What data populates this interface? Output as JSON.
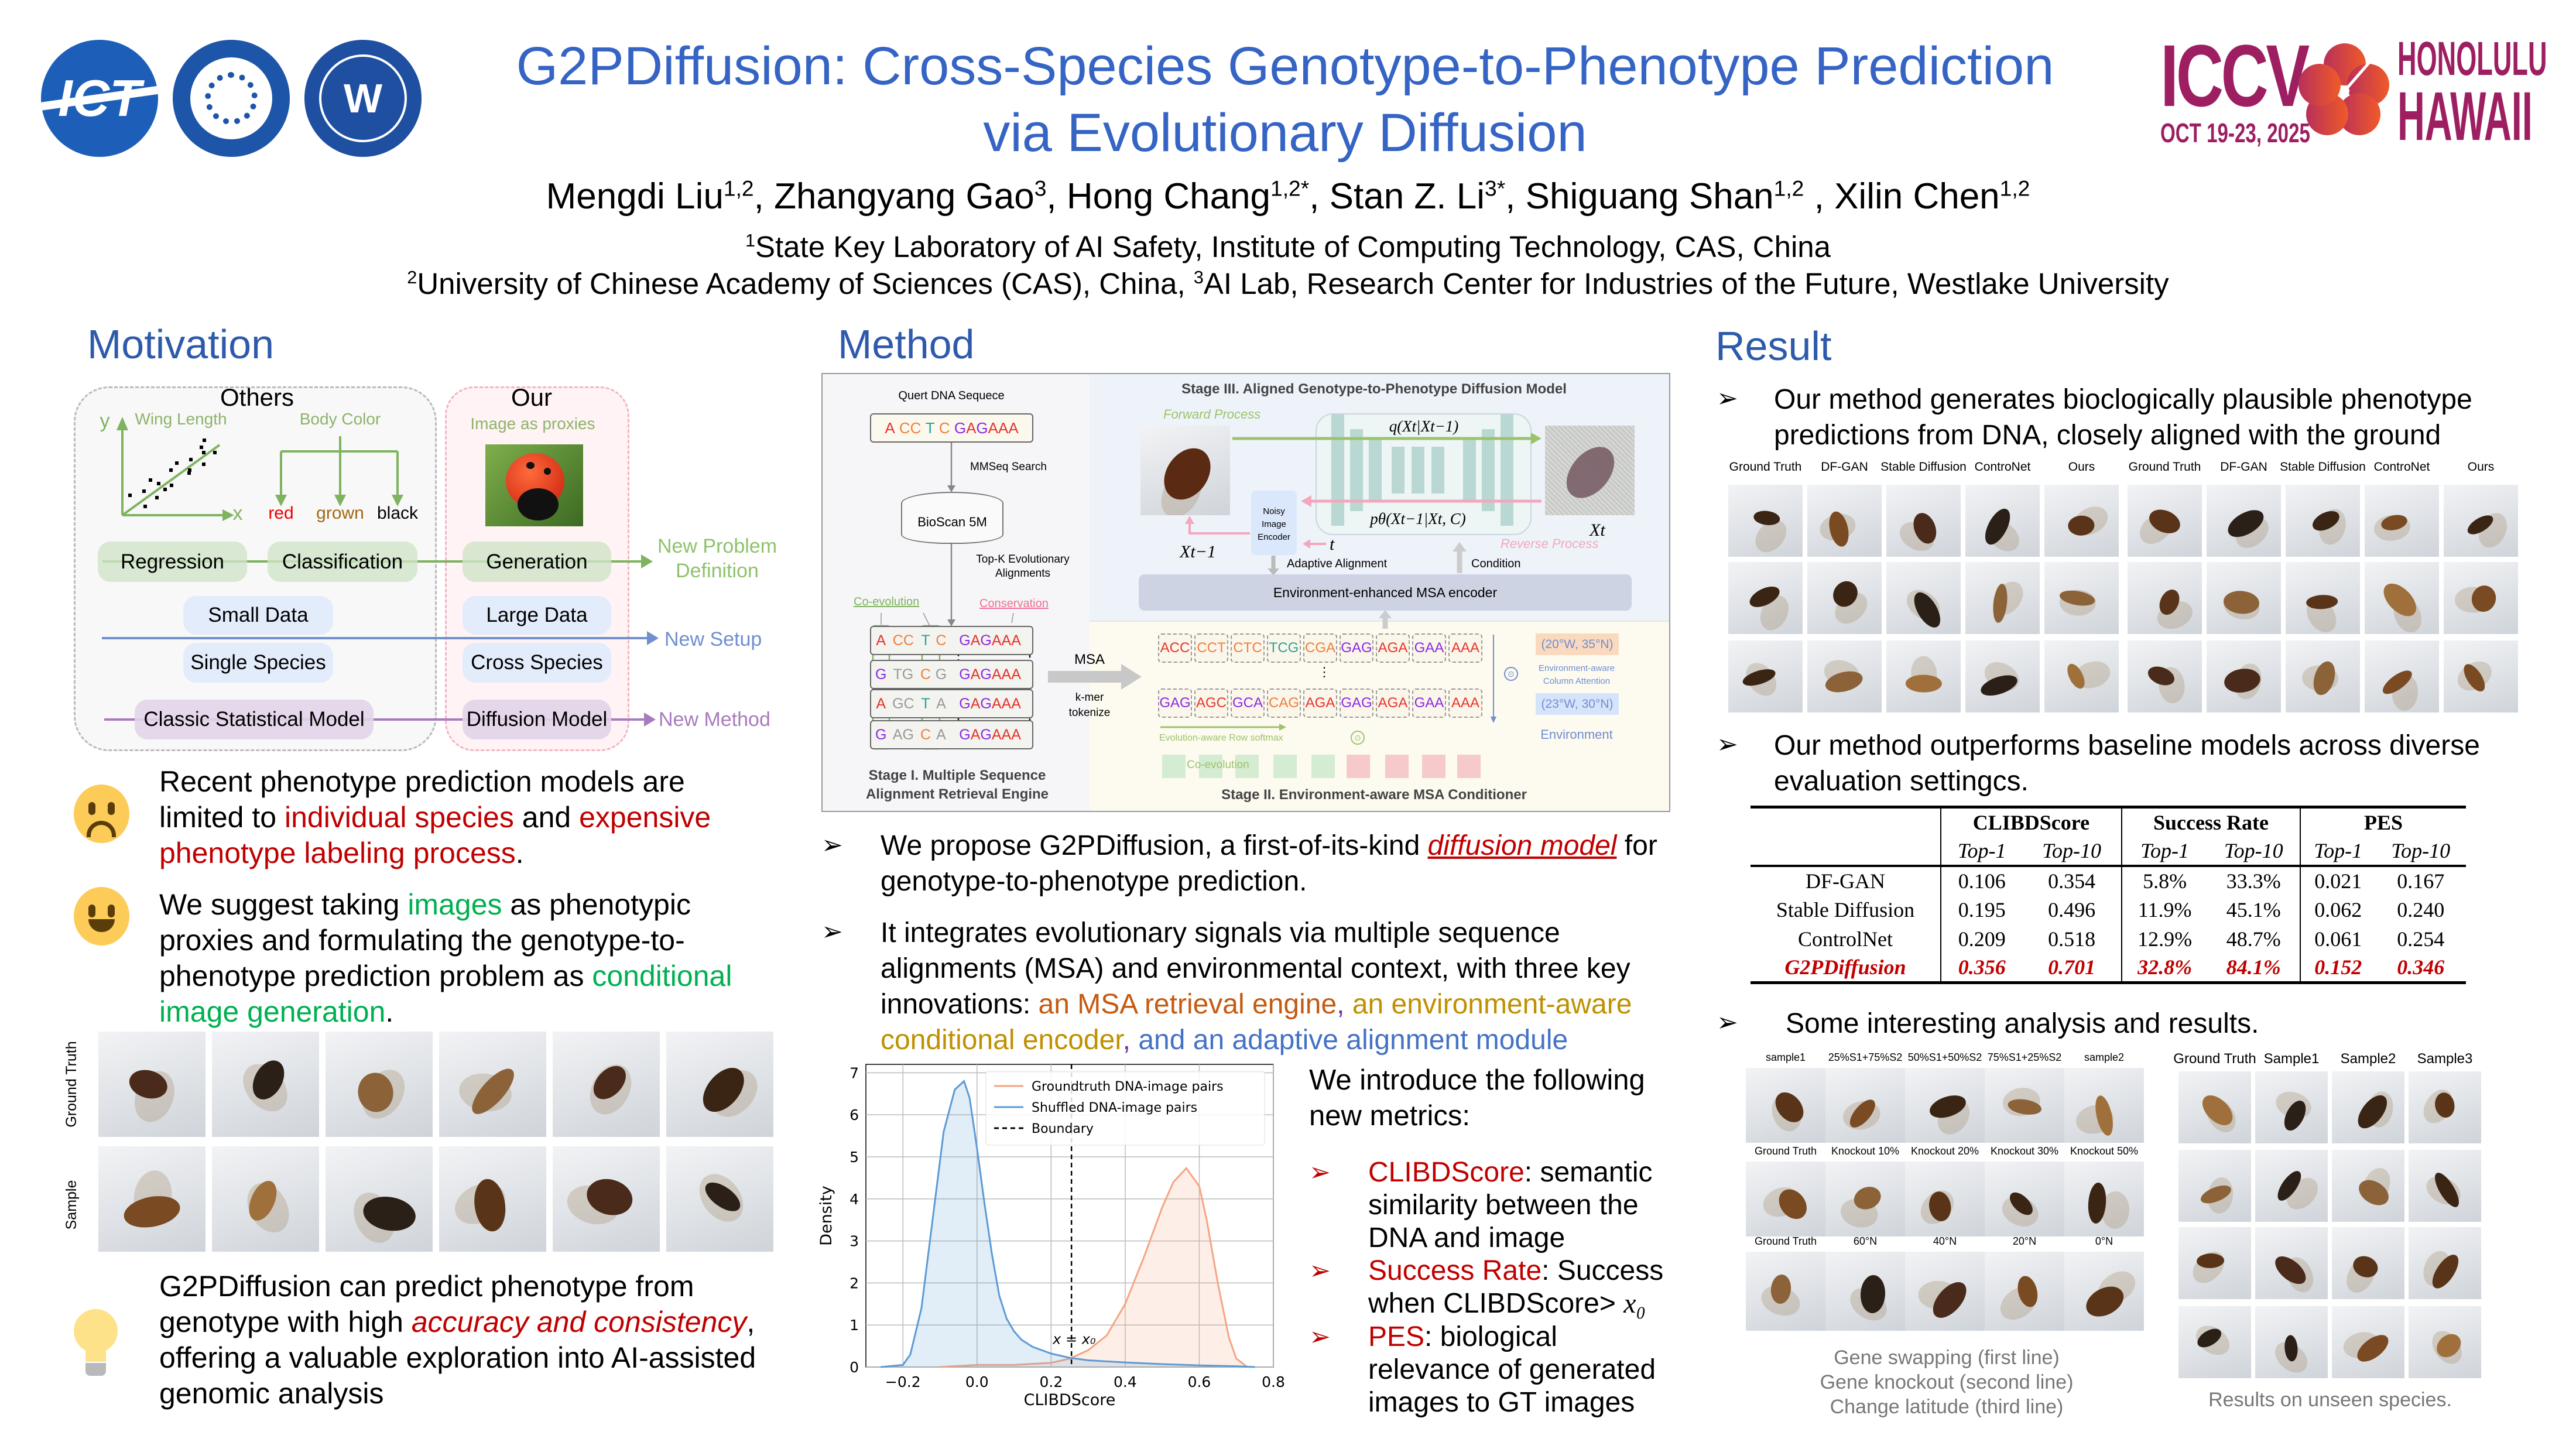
{
  "header": {
    "title_line1": "G2PDiffusion: Cross-Species Genotype-to-Phenotype Prediction",
    "title_line2": "via Evolutionary Diffusion",
    "authors": [
      {
        "name": "Mengdi Liu",
        "sup": "1,2",
        "sep": ", "
      },
      {
        "name": "Zhangyang Gao",
        "sup": "3",
        "sep": ", "
      },
      {
        "name": "Hong Chang",
        "sup": "1,2*",
        "sep": ", "
      },
      {
        "name": "Stan Z. Li",
        "sup": "3*",
        "sep": ", "
      },
      {
        "name": "Shiguang Shan",
        "sup": "1,2",
        "sep": " , "
      },
      {
        "name": "Xilin Chen",
        "sup": "1,2",
        "sep": ""
      }
    ],
    "affiliation1": {
      "sup": "1",
      "text": "State Key Laboratory of AI Safety, Institute of Computing Technology, CAS, China"
    },
    "affiliation2": {
      "sup1": "2",
      "text1": "University of Chinese Academy of Sciences (CAS), China, ",
      "sup2": "3",
      "text2": "AI Lab, Research Center for Industries of the Future, Westlake University"
    },
    "logos": {
      "ict": "ICT",
      "cas": "Chinese Academy of Sciences",
      "westlake": "Westlake University",
      "conf": "ICCV",
      "conf_date": "OCT 19-23, 2025",
      "conf_city": "HONOLULU",
      "conf_state": "HAWAII"
    }
  },
  "colors": {
    "title": "#3564c4",
    "section": "#2e5aac",
    "red": "#c00000",
    "green": "#00b050",
    "iccv": "#9d1f62"
  },
  "motivation": {
    "heading": "Motivation",
    "diagram": {
      "others": "Others",
      "our": "Our",
      "wing_length": "Wing Length",
      "body_color": "Body Color",
      "image_proxies": "Image as proxies",
      "axis_y": "y",
      "axis_x": "x",
      "colors": [
        "red",
        "grown",
        "black"
      ],
      "regression": "Regression",
      "classification": "Classification",
      "generation": "Generation",
      "small_data": "Small Data",
      "large_data": "Large Data",
      "single_species": "Single Species",
      "cross_species": "Cross Species",
      "classic_model": "Classic Statistical Model",
      "diffusion_model": "Diffusion Model",
      "new_problem": "New Problem Definition",
      "new_setup": "New Setup",
      "new_method": "New Method"
    },
    "point1": [
      [
        "Recent phenotype prediction models are limited to ",
        ""
      ],
      [
        "individual species",
        "red"
      ],
      [
        " and ",
        ""
      ],
      [
        "expensive phenotype labeling process",
        "red"
      ],
      [
        ".",
        ""
      ]
    ],
    "point2": [
      [
        "We suggest taking ",
        ""
      ],
      [
        "images",
        "green"
      ],
      [
        " as phenotypic proxies and formulating the genotype-to-phenotype prediction problem as ",
        ""
      ],
      [
        "conditional image generation",
        "green"
      ],
      [
        ".",
        ""
      ]
    ],
    "grid_row_labels": [
      "Ground Truth",
      "Sample"
    ],
    "point3": [
      [
        "G2PDiffusion can predict phenotype from genotype with high ",
        ""
      ],
      [
        "accuracy and consistency",
        "redi"
      ],
      [
        ", offering a valuable exploration into AI-assisted genomic analysis",
        ""
      ]
    ]
  },
  "method": {
    "heading": "Method",
    "diagram": {
      "query_label": "Quert DNA Sequece",
      "query_seq": "A CC T C GAGAAA",
      "mmseq": "MMSeq Search",
      "db": "BioScan 5M",
      "topk": "Top-K Evolutionary Alignments",
      "coevolution": "Co-evolution",
      "conservation": "Conservation",
      "msa_rows": [
        [
          "A",
          "CC",
          "T",
          "C",
          "GAGAAA"
        ],
        [
          "G",
          "TG",
          "C",
          "G",
          "GAGAAA"
        ],
        [
          "A",
          "GC",
          "T",
          "A",
          "GAGAAA"
        ],
        [
          "G",
          "AG",
          "C",
          "A",
          "GAGAAA"
        ]
      ],
      "msa": "MSA",
      "kmer": "k-mer tokenize",
      "stage1": "Stage I. Multiple Sequence Alignment Retrieval Engine",
      "stage3": "Stage III. Aligned Genotype-to-Phenotype Diffusion Model",
      "forward": "Forward Process",
      "reverse": "Reverse Process",
      "q_formula": "q(Xt|Xt−1)",
      "p_formula": "pθ(Xt−1|Xt, C)",
      "x_prev": "Xt−1",
      "x_t": "Xt",
      "t": "t",
      "noisy_encoder": "Noisy Image Encoder",
      "adaptive": "Adaptive Alignment",
      "condition": "Condition",
      "encoder": "Environment-enhanced MSA encoder",
      "tokens1": [
        "ACC",
        "CCT",
        "CTC",
        "TCG",
        "CGA",
        "GAG",
        "AGA",
        "GAA",
        "AAA"
      ],
      "tokens2": [
        "GAG",
        "AGC",
        "GCA",
        "CAG",
        "AGA",
        "GAG",
        "AGA",
        "GAA",
        "AAA"
      ],
      "ellipsis": "⋮",
      "env1": "(20°W, 35°N)",
      "env2": "(23°W, 30°N)",
      "col_attention": "Environment-aware Column Attention",
      "environment": "Environment",
      "row_softmax": "Evolution-aware Row softmax",
      "coevo_bar": "Co-evolution",
      "odot": "⊙",
      "stage2": "Stage II. Environment-aware MSA Conditioner"
    },
    "bullet1": [
      [
        "We propose G2PDiffusion, a first-of-its-kind ",
        ""
      ],
      [
        "diffusion model",
        "redu"
      ],
      [
        " for genotype-to-phenotype prediction.",
        ""
      ]
    ],
    "bullet2": [
      [
        "It integrates evolutionary signals via multiple sequence alignments (MSA) and environmental context, with three key innovations: ",
        ""
      ],
      [
        "an MSA retrieval engine",
        "orange"
      ],
      [
        ", ",
        "purple"
      ],
      [
        "an environment-aware conditional encoder",
        "gold"
      ],
      [
        ", ",
        "purple"
      ],
      [
        "and an adaptive alignment module",
        "blue"
      ]
    ],
    "metrics_intro": "We introduce the following new metrics:",
    "metrics": [
      [
        [
          "CLIBDScore",
          "red"
        ],
        [
          ": semantic similarity between the DNA and image",
          ""
        ]
      ],
      [
        [
          "Success Rate",
          "red"
        ],
        [
          ": Success when CLIBDScore> ",
          ""
        ],
        [
          "x₀",
          "ital"
        ]
      ],
      [
        [
          "PES",
          "red"
        ],
        [
          ": biological relevance of generated images to GT images",
          ""
        ]
      ]
    ]
  },
  "chart_data": {
    "type": "area",
    "title": "",
    "xlabel": "CLIBDScore",
    "ylabel": "Density",
    "xlim": [
      -0.3,
      0.8
    ],
    "ylim": [
      0,
      7.2
    ],
    "xticks": [
      -0.2,
      0.0,
      0.2,
      0.4,
      0.6,
      0.8
    ],
    "xtick_labels": [
      "−0.2",
      "0.0",
      "0.2",
      "0.4",
      "0.6",
      "0.8"
    ],
    "yticks": [
      0,
      1,
      2,
      3,
      4,
      5,
      6,
      7
    ],
    "grid": true,
    "legend_position": "top-right",
    "series": [
      {
        "name": "Groundtruth DNA-image pairs",
        "color": "#f4a582",
        "x": [
          -0.1,
          0.0,
          0.1,
          0.2,
          0.25,
          0.3,
          0.35,
          0.4,
          0.45,
          0.5,
          0.53,
          0.565,
          0.6,
          0.62,
          0.65,
          0.68,
          0.7,
          0.73
        ],
        "y": [
          0,
          0.05,
          0.05,
          0.1,
          0.2,
          0.4,
          0.75,
          1.5,
          2.6,
          3.8,
          4.4,
          4.73,
          4.3,
          3.5,
          2.0,
          0.7,
          0.2,
          0
        ]
      },
      {
        "name": "Shuffled DNA-image pairs",
        "color": "#5b9bd5",
        "x": [
          -0.26,
          -0.2,
          -0.18,
          -0.15,
          -0.12,
          -0.09,
          -0.06,
          -0.035,
          -0.02,
          0.0,
          0.02,
          0.04,
          0.06,
          0.08,
          0.1,
          0.12,
          0.15,
          0.2,
          0.25,
          0.3,
          0.4,
          0.5,
          0.6,
          0.7,
          0.75
        ],
        "y": [
          0,
          0.05,
          0.3,
          1.4,
          3.5,
          5.6,
          6.6,
          6.8,
          6.4,
          5.2,
          3.9,
          2.7,
          1.7,
          1.15,
          0.85,
          0.65,
          0.48,
          0.32,
          0.22,
          0.16,
          0.11,
          0.07,
          0.04,
          0.02,
          0
        ]
      }
    ],
    "boundary": {
      "name": "Boundary",
      "x": 0.255,
      "annotation": "x = x₀"
    }
  },
  "result": {
    "heading": "Result",
    "bullet1": "Our method generates bioclogically plausible phenotype predictions from DNA, closely aligned with the ground",
    "compare_labels": [
      "Ground Truth",
      "DF-GAN",
      "Stable Diffusion",
      "ControNet",
      "Ours"
    ],
    "bullet2": "Our method outperforms baseline models across diverse evaluation settingcs.",
    "table": {
      "groups": [
        "CLIBDScore",
        "Success Rate",
        "PES"
      ],
      "subheaders": [
        "Top-1",
        "Top-10"
      ],
      "rows": [
        {
          "method": "DF-GAN",
          "values": [
            "0.106",
            "0.354",
            "5.8%",
            "33.3%",
            "0.021",
            "0.167"
          ]
        },
        {
          "method": "Stable Diffusion",
          "values": [
            "0.195",
            "0.496",
            "11.9%",
            "45.1%",
            "0.062",
            "0.240"
          ]
        },
        {
          "method": "ControlNet",
          "values": [
            "0.209",
            "0.518",
            "12.9%",
            "48.7%",
            "0.061",
            "0.254"
          ]
        },
        {
          "method": "G2PDiffusion",
          "values": [
            "0.356",
            "0.701",
            "32.8%",
            "84.1%",
            "0.152",
            "0.346"
          ],
          "highlight": true
        }
      ]
    },
    "bullet3": "Some interesting analysis and results.",
    "analysis_labels": [
      [
        "sample1",
        "25%S1+75%S2",
        "50%S1+50%S2",
        "75%S1+25%S2",
        "sample2"
      ],
      [
        "Ground Truth",
        "Knockout  10%",
        "Knockout 20%",
        "Knockout 30%",
        "Knockout  50%"
      ],
      [
        "Ground Truth",
        "60°N",
        "40°N",
        "20°N",
        "0°N"
      ]
    ],
    "analysis_caption": [
      "Gene swapping (first line)",
      "Gene knockout (second line)",
      "Change latitude (third line)"
    ],
    "unseen_labels": [
      "Ground Truth",
      "Sample1",
      "Sample2",
      "Sample3"
    ],
    "unseen_caption": "Results on unseen species."
  }
}
